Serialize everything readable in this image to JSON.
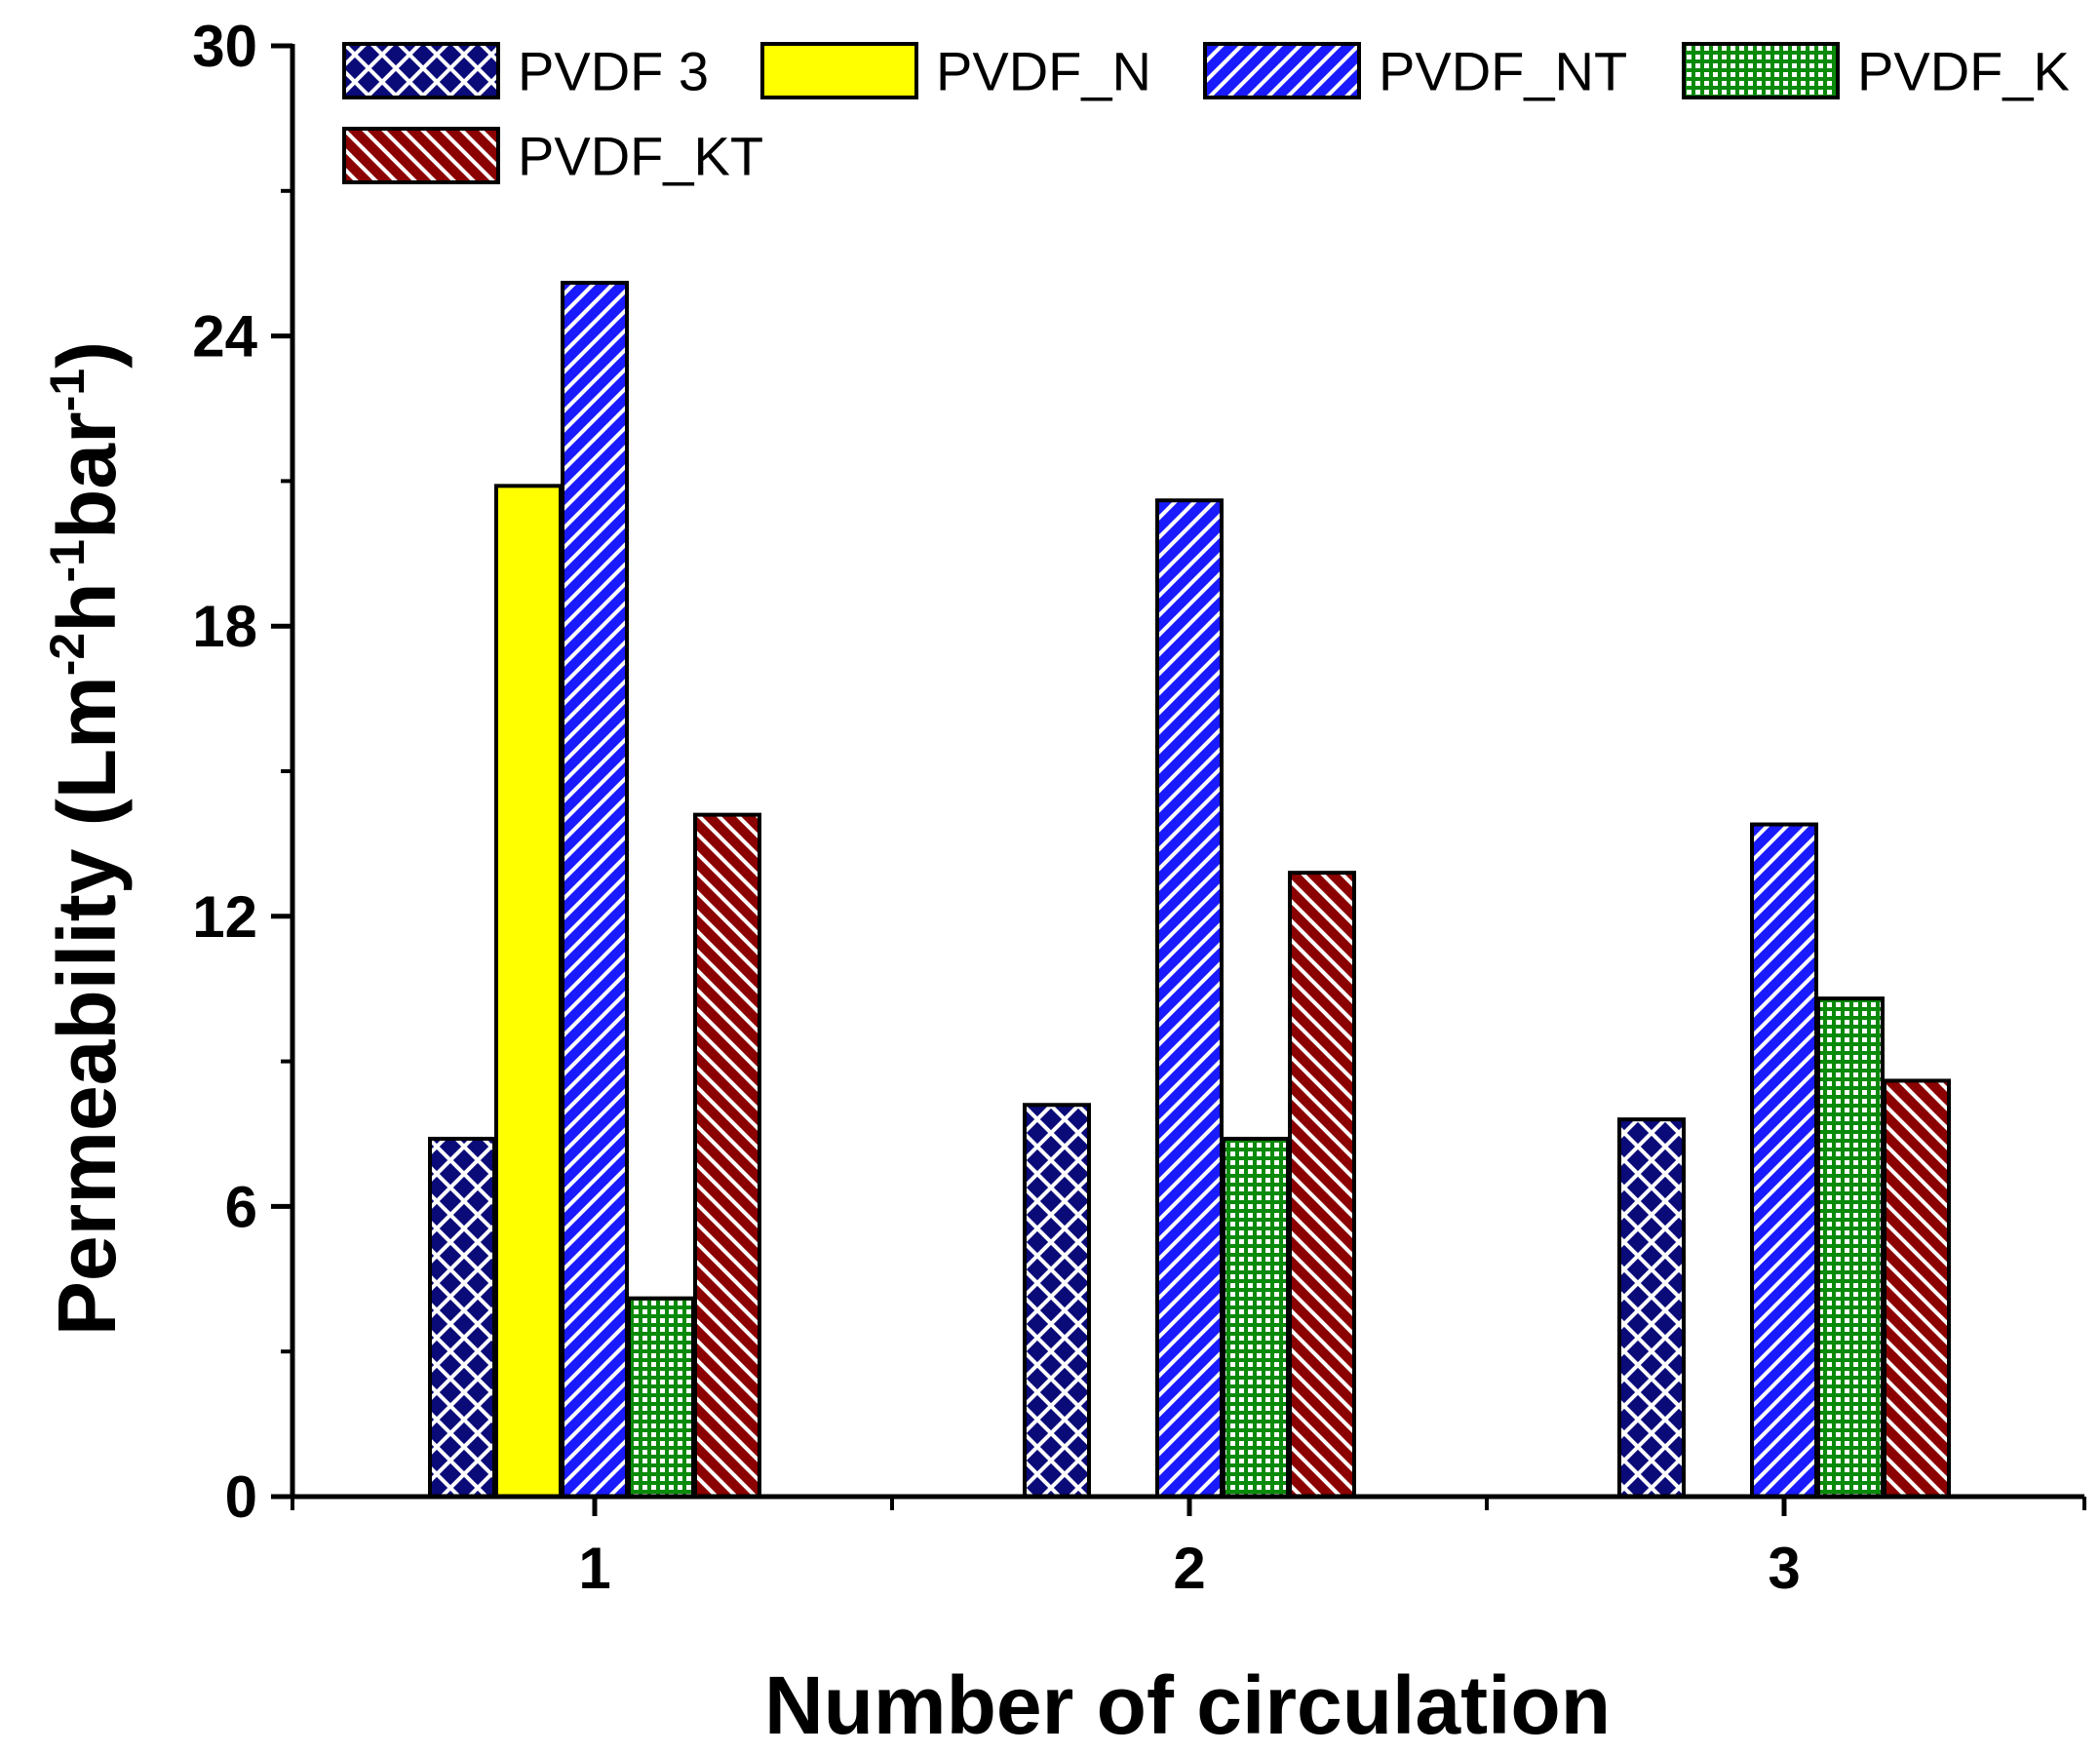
{
  "chart_data": {
    "type": "bar",
    "title": "",
    "xlabel": "Number of circulation",
    "ylabel": "Permeability (Lm-2h-1bar-1)",
    "ylabel_parts": {
      "prefix": "Permeability (Lm",
      "sup1": "-2",
      "mid1": "h",
      "sup2": "-1",
      "mid2": "bar",
      "sup3": "-1",
      "suffix": ")"
    },
    "categories": [
      "1",
      "2",
      "3"
    ],
    "ylim": [
      0,
      30
    ],
    "yticks": [
      "0",
      "6",
      "12",
      "18",
      "24",
      "30"
    ],
    "grid": false,
    "legend_position": "top",
    "series": [
      {
        "name": "PVDF 3",
        "values": [
          7.4,
          8.1,
          7.8
        ],
        "color": "#0a0a78",
        "pattern": "crosshatch"
      },
      {
        "name": "PVDF_N",
        "values": [
          20.9,
          0,
          0
        ],
        "color": "#ffff00",
        "pattern": "solid"
      },
      {
        "name": "PVDF_NT",
        "values": [
          25.1,
          20.6,
          13.9
        ],
        "color": "#1a1aff",
        "pattern": "diagonal-up"
      },
      {
        "name": "PVDF_K",
        "values": [
          4.1,
          7.4,
          10.3
        ],
        "color": "#0a8a0a",
        "pattern": "grid"
      },
      {
        "name": "PVDF_KT",
        "values": [
          14.1,
          12.9,
          8.6
        ],
        "color": "#8b0000",
        "pattern": "diagonal-down"
      }
    ]
  }
}
